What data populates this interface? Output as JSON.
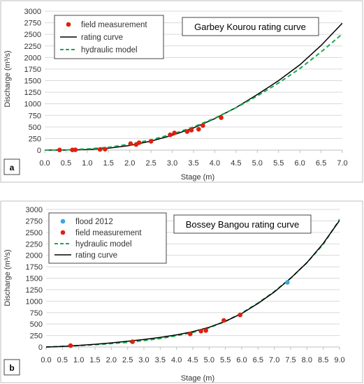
{
  "chart_data": [
    {
      "panel_label": "a",
      "type": "scatter",
      "title": "Garbey Kourou rating curve",
      "xlabel": "Stage (m)",
      "ylabel": "Discharge (m³/s)",
      "xlim": [
        0,
        7
      ],
      "ylim": [
        0,
        3000
      ],
      "x_ticks": [
        "0.0",
        "0.5",
        "1.0",
        "1.5",
        "2.0",
        "2.5",
        "3.0",
        "3.5",
        "4.0",
        "4.5",
        "5.0",
        "5.5",
        "6.0",
        "6.5",
        "7.0"
      ],
      "y_ticks": [
        "0",
        "250",
        "500",
        "750",
        "1000",
        "1250",
        "1500",
        "1750",
        "2000",
        "2250",
        "2500",
        "2750",
        "3000"
      ],
      "grid": "horizontal",
      "legend_position": "top-left",
      "legend": [
        "field measurement",
        "rating curve",
        "hydraulic model"
      ],
      "series": [
        {
          "name": "field measurement",
          "kind": "points",
          "color": "#e0200f",
          "points": [
            [
              0.35,
              3
            ],
            [
              0.65,
              5
            ],
            [
              0.72,
              7
            ],
            [
              1.3,
              15
            ],
            [
              1.42,
              20
            ],
            [
              2.02,
              140
            ],
            [
              2.15,
              120
            ],
            [
              2.22,
              160
            ],
            [
              2.5,
              190
            ],
            [
              2.95,
              330
            ],
            [
              3.05,
              370
            ],
            [
              3.35,
              400
            ],
            [
              3.45,
              430
            ],
            [
              3.62,
              450
            ],
            [
              3.72,
              530
            ],
            [
              4.15,
              700
            ]
          ]
        },
        {
          "name": "rating curve",
          "kind": "line",
          "color": "#000000",
          "points": [
            [
              0,
              0
            ],
            [
              0.5,
              2
            ],
            [
              1,
              12
            ],
            [
              1.5,
              40
            ],
            [
              2,
              100
            ],
            [
              2.5,
              195
            ],
            [
              3,
              320
            ],
            [
              3.5,
              480
            ],
            [
              4,
              680
            ],
            [
              4.5,
              920
            ],
            [
              5,
              1200
            ],
            [
              5.5,
              1500
            ],
            [
              6,
              1840
            ],
            [
              6.5,
              2260
            ],
            [
              7,
              2740
            ]
          ]
        },
        {
          "name": "hydraulic model",
          "kind": "dashed",
          "color": "#1aa84f",
          "points": [
            [
              0,
              0
            ],
            [
              0.5,
              5
            ],
            [
              1,
              25
            ],
            [
              1.5,
              60
            ],
            [
              2,
              130
            ],
            [
              2.5,
              220
            ],
            [
              3,
              345
            ],
            [
              3.5,
              500
            ],
            [
              4,
              690
            ],
            [
              4.5,
              915
            ],
            [
              5,
              1170
            ],
            [
              5.5,
              1450
            ],
            [
              6,
              1760
            ],
            [
              6.5,
              2120
            ],
            [
              7,
              2510
            ]
          ]
        }
      ]
    },
    {
      "panel_label": "b",
      "type": "scatter",
      "title": "Bossey Bangou rating curve",
      "xlabel": "Stage (m)",
      "ylabel": "Discharge (m³/s)",
      "xlim": [
        0,
        9
      ],
      "ylim": [
        0,
        3000
      ],
      "x_ticks": [
        "0.0",
        "0.5",
        "1.0",
        "1.5",
        "2.0",
        "2.5",
        "3.0",
        "3.5",
        "4.0",
        "4.5",
        "5.0",
        "5.5",
        "6.0",
        "6.5",
        "7.0",
        "7.5",
        "8.0",
        "8.5",
        "9.0"
      ],
      "y_ticks": [
        "0",
        "250",
        "500",
        "750",
        "1000",
        "1250",
        "1500",
        "1750",
        "2000",
        "2250",
        "2500",
        "2750",
        "3000"
      ],
      "grid": "horizontal",
      "legend_position": "top-left",
      "legend": [
        "flood 2012",
        "field measurement",
        "hydraulic model",
        "rating curve"
      ],
      "series": [
        {
          "name": "flood 2012",
          "kind": "points",
          "color": "#3aa6e0",
          "points": [
            [
              7.4,
              1410
            ]
          ]
        },
        {
          "name": "field measurement",
          "kind": "points",
          "color": "#e0200f",
          "points": [
            [
              0.75,
              30
            ],
            [
              2.65,
              115
            ],
            [
              4.42,
              285
            ],
            [
              4.75,
              345
            ],
            [
              4.9,
              360
            ],
            [
              5.45,
              580
            ],
            [
              5.95,
              700
            ]
          ]
        },
        {
          "name": "hydraulic model",
          "kind": "dashed",
          "color": "#1aa84f",
          "points": [
            [
              0,
              0
            ],
            [
              0.5,
              15
            ],
            [
              1,
              30
            ],
            [
              1.5,
              50
            ],
            [
              2,
              75
            ],
            [
              2.5,
              100
            ],
            [
              3,
              140
            ],
            [
              3.5,
              185
            ],
            [
              4,
              245
            ],
            [
              4.5,
              320
            ],
            [
              5,
              420
            ],
            [
              5.5,
              560
            ],
            [
              6,
              740
            ],
            [
              6.5,
              960
            ],
            [
              7,
              1210
            ],
            [
              7.5,
              1500
            ],
            [
              8,
              1840
            ],
            [
              8.5,
              2240
            ],
            [
              9,
              2780
            ],
            [
              9.3,
              3000
            ]
          ]
        },
        {
          "name": "rating curve",
          "kind": "line",
          "color": "#000000",
          "points": [
            [
              0,
              0
            ],
            [
              0.5,
              12
            ],
            [
              1,
              35
            ],
            [
              1.5,
              60
            ],
            [
              2,
              90
            ],
            [
              2.5,
              125
            ],
            [
              3,
              165
            ],
            [
              3.5,
              210
            ],
            [
              4,
              265
            ],
            [
              4.5,
              335
            ],
            [
              5,
              430
            ],
            [
              5.5,
              560
            ],
            [
              6,
              730
            ],
            [
              6.5,
              950
            ],
            [
              7,
              1200
            ],
            [
              7.5,
              1500
            ],
            [
              8,
              1840
            ],
            [
              8.5,
              2260
            ],
            [
              9,
              2760
            ],
            [
              9.25,
              3000
            ]
          ]
        }
      ]
    }
  ]
}
